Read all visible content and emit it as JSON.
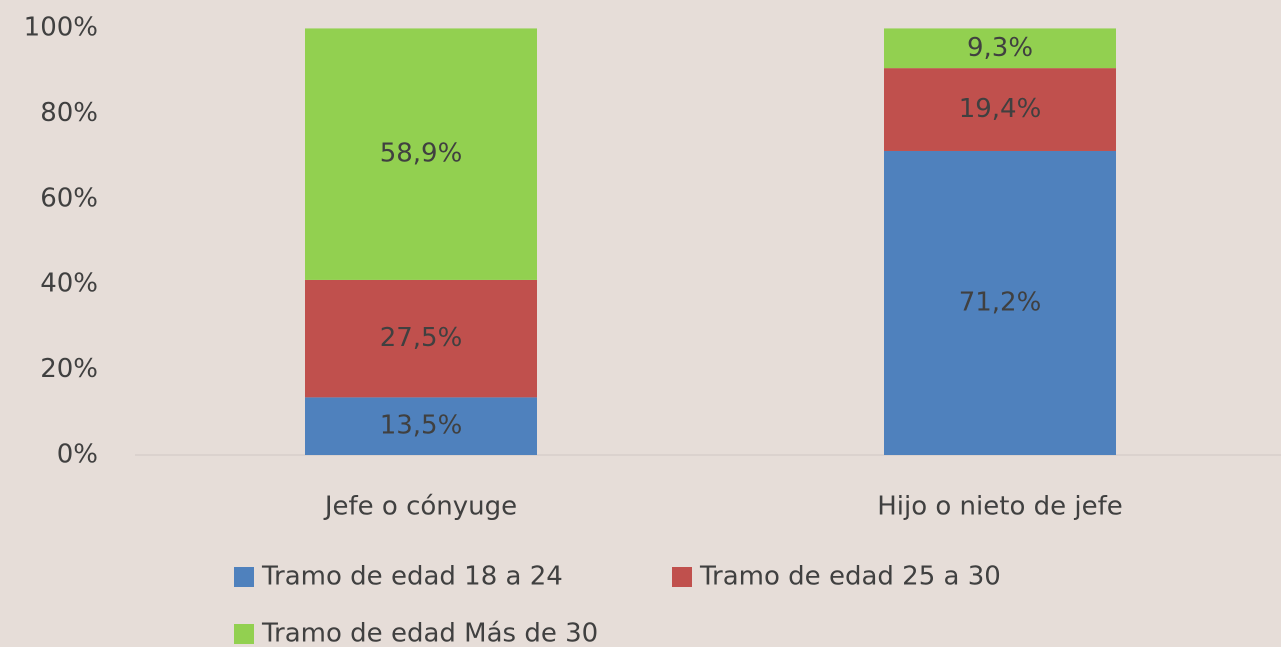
{
  "chart_data": {
    "type": "stacked_bar",
    "categories": [
      "Jefe o cónyuge",
      "Hijo o nieto de jefe"
    ],
    "series": [
      {
        "name": "Tramo de edad 18 a 24",
        "color": "#4f81bd",
        "values": [
          13.5,
          71.2
        ],
        "value_labels": [
          "13,5%",
          "71,2%"
        ]
      },
      {
        "name": "Tramo de edad 25 a 30",
        "color": "#c0504d",
        "values": [
          27.5,
          19.4
        ],
        "value_labels": [
          "27,5%",
          "19,4%"
        ]
      },
      {
        "name": "Tramo de edad Más de 30",
        "color": "#92d050",
        "values": [
          58.9,
          9.3
        ],
        "value_labels": [
          "58,9%",
          "9,3%"
        ]
      }
    ],
    "ylim": [
      0,
      100
    ],
    "yticks": [
      {
        "value": 0,
        "label": "0%"
      },
      {
        "value": 20,
        "label": "20%"
      },
      {
        "value": 40,
        "label": "40%"
      },
      {
        "value": 60,
        "label": "60%"
      },
      {
        "value": 80,
        "label": "80%"
      },
      {
        "value": 100,
        "label": "100%"
      }
    ],
    "legend": "bottom"
  }
}
